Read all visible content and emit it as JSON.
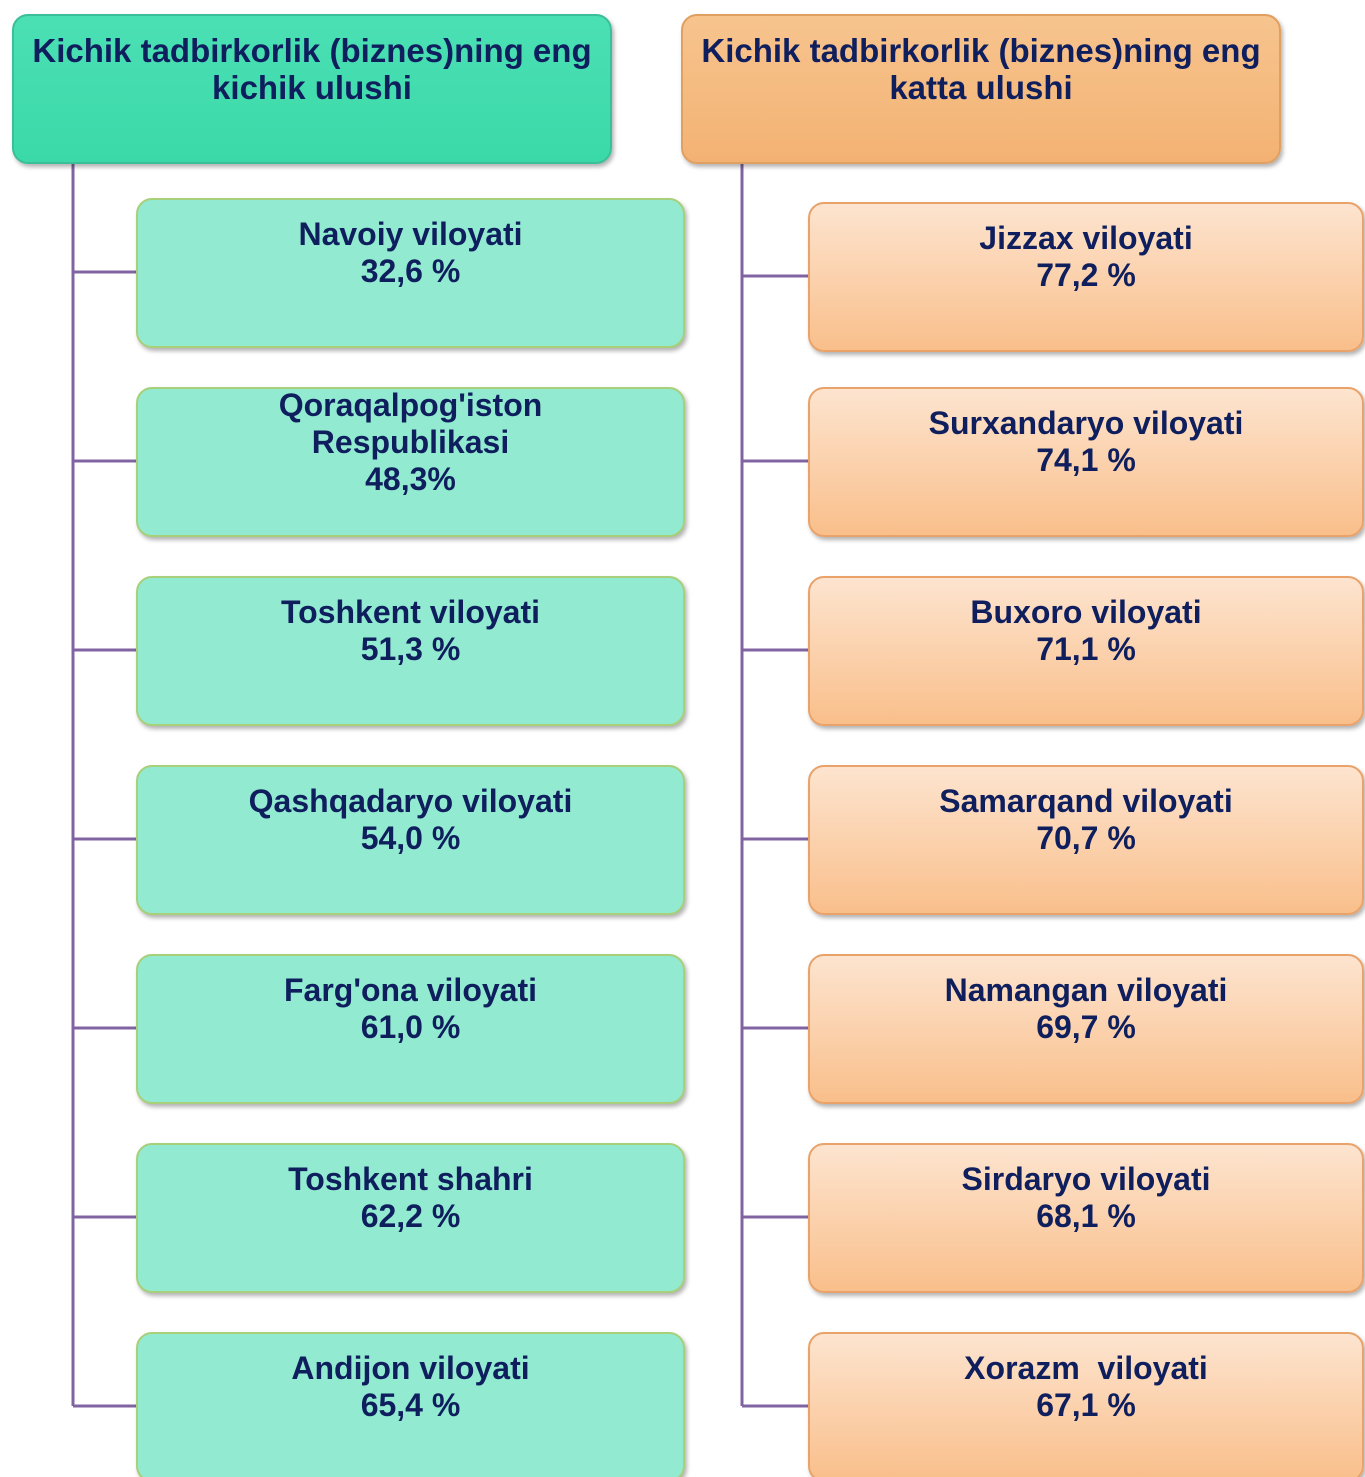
{
  "columns": [
    {
      "header": "Kichik tadbirkorlik (biznes)ning eng kichik ulushi",
      "items": [
        {
          "name": "Navoiy viloyati",
          "value": "32,6 %"
        },
        {
          "name": "Qoraqalpog'iston Respublikasi",
          "value": "48,3%"
        },
        {
          "name": "Toshkent viloyati",
          "value": "51,3 %"
        },
        {
          "name": "Qashqadaryo viloyati",
          "value": "54,0 %"
        },
        {
          "name": "Farg'ona viloyati",
          "value": "61,0 %"
        },
        {
          "name": "Toshkent shahri",
          "value": "62,2 %"
        },
        {
          "name": "Andijon viloyati",
          "value": "65,4 %"
        }
      ]
    },
    {
      "header": "Kichik tadbirkorlik (biznes)ning eng katta ulushi",
      "items": [
        {
          "name": "Jizzax viloyati",
          "value": "77,2 %"
        },
        {
          "name": "Surxandaryo viloyati",
          "value": "74,1 %"
        },
        {
          "name": "Buxoro viloyati",
          "value": "71,1 %"
        },
        {
          "name": "Samarqand viloyati",
          "value": "70,7 %"
        },
        {
          "name": "Namangan viloyati",
          "value": "69,7 %"
        },
        {
          "name": "Sirdaryo viloyati",
          "value": "68,1 %"
        },
        {
          "name": "Xorazm  viloyati",
          "value": "67,1 %"
        }
      ]
    }
  ]
}
